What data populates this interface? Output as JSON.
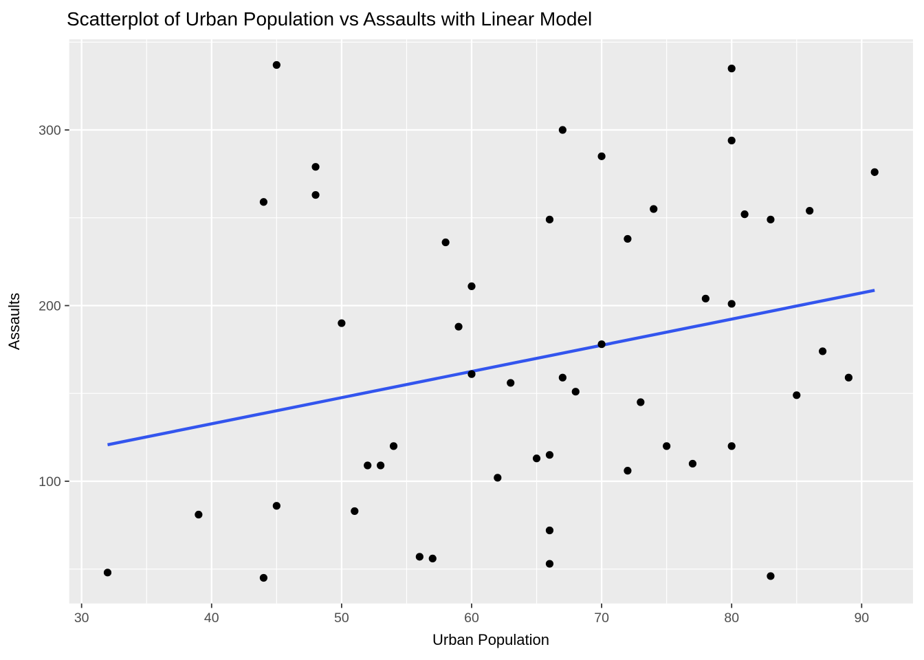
{
  "chart_data": {
    "type": "scatter",
    "title": "Scatterplot of Urban Population vs Assaults with Linear Model",
    "xlabel": "Urban Population",
    "ylabel": "Assaults",
    "x_ticks": [
      30,
      40,
      50,
      60,
      70,
      80,
      90
    ],
    "y_ticks": [
      100,
      200,
      300
    ],
    "x_minor_ticks": [
      35,
      45,
      55,
      65,
      75,
      85
    ],
    "y_minor_ticks": [
      50,
      150,
      250,
      350
    ],
    "xlim": [
      29.05,
      93.95
    ],
    "ylim": [
      30.4,
      351.6
    ],
    "grid": "on",
    "legend": "none",
    "series": [
      {
        "name": "observations",
        "marker": "filled-circle",
        "points": [
          [
            58,
            236
          ],
          [
            48,
            263
          ],
          [
            80,
            294
          ],
          [
            50,
            190
          ],
          [
            91,
            276
          ],
          [
            78,
            204
          ],
          [
            77,
            110
          ],
          [
            72,
            238
          ],
          [
            80,
            335
          ],
          [
            60,
            211
          ],
          [
            83,
            46
          ],
          [
            54,
            120
          ],
          [
            83,
            249
          ],
          [
            65,
            113
          ],
          [
            57,
            56
          ],
          [
            66,
            115
          ],
          [
            52,
            109
          ],
          [
            66,
            249
          ],
          [
            51,
            83
          ],
          [
            67,
            300
          ],
          [
            85,
            149
          ],
          [
            74,
            255
          ],
          [
            66,
            72
          ],
          [
            44,
            259
          ],
          [
            70,
            178
          ],
          [
            53,
            109
          ],
          [
            62,
            102
          ],
          [
            81,
            252
          ],
          [
            56,
            57
          ],
          [
            89,
            159
          ],
          [
            70,
            285
          ],
          [
            86,
            254
          ],
          [
            45,
            337
          ],
          [
            44,
            45
          ],
          [
            75,
            120
          ],
          [
            68,
            151
          ],
          [
            67,
            159
          ],
          [
            72,
            106
          ],
          [
            87,
            174
          ],
          [
            48,
            279
          ],
          [
            45,
            86
          ],
          [
            59,
            188
          ],
          [
            80,
            201
          ],
          [
            80,
            120
          ],
          [
            32,
            48
          ],
          [
            63,
            156
          ],
          [
            73,
            145
          ],
          [
            39,
            81
          ],
          [
            66,
            53
          ],
          [
            60,
            161
          ]
        ]
      }
    ],
    "trend_line": {
      "name": "linear-model-fit",
      "slope": 1.4904,
      "intercept": 73.08,
      "x_start": 32,
      "x_end": 91
    },
    "colors": {
      "panel_background": "#ebebeb",
      "grid_line": "#ffffff",
      "point": "#000000",
      "trend_line": "#3355ee",
      "tick_mark": "#333333",
      "tick_label": "#4d4d4d",
      "axis_title": "#000000",
      "title": "#000000",
      "page_background": "#ffffff"
    }
  }
}
